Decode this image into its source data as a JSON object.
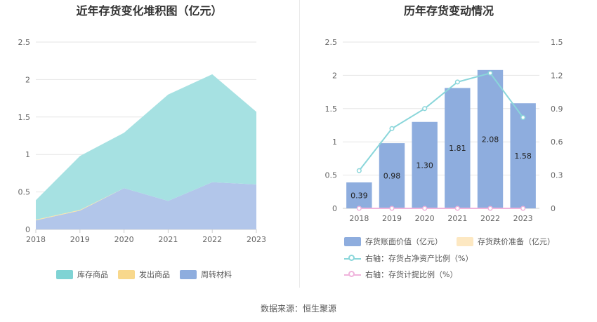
{
  "left": {
    "title": "近年存货变化堆积图（亿元）",
    "colors": {
      "库存商品": "#a6e1e2",
      "发出商品": "#fbe3a4",
      "周转材料": "#b2c6ea"
    },
    "legend_colors": [
      "#7fd3d4",
      "#f8d88c",
      "#8eadde"
    ],
    "chart_data": {
      "type": "area",
      "stacked": true,
      "x": [
        "2018",
        "2019",
        "2020",
        "2021",
        "2022",
        "2023"
      ],
      "series": [
        {
          "name": "库存商品",
          "values": [
            0.26,
            0.72,
            0.74,
            1.42,
            1.44,
            0.97
          ]
        },
        {
          "name": "发出商品",
          "values": [
            0.01,
            0.01,
            0.0,
            0.0,
            0.0,
            0.0
          ]
        },
        {
          "name": "周转材料",
          "values": [
            0.12,
            0.25,
            0.55,
            0.38,
            0.63,
            0.6
          ]
        }
      ],
      "stack_order": [
        "周转材料",
        "发出商品",
        "库存商品"
      ],
      "yticks": [
        "0",
        "0.5",
        "1",
        "1.5",
        "2",
        "2.5"
      ],
      "ylim": [
        0,
        2.5
      ],
      "grid": true,
      "legend_position": "bottom"
    }
  },
  "right": {
    "title": "历年存货变动情况",
    "bar_color": "#8eadde",
    "reserve_color": "#fde8c2",
    "ratio_color": "#8ad6da",
    "provision_color": "#f0b4dc",
    "chart_data": {
      "type": "bar",
      "x": [
        "2018",
        "2019",
        "2020",
        "2021",
        "2022",
        "2023"
      ],
      "series": [
        {
          "name": "存货账面价值（亿元）",
          "type": "bar",
          "axis": "left",
          "values": [
            0.39,
            0.98,
            1.3,
            1.81,
            2.08,
            1.58
          ],
          "labels": [
            "0.39",
            "0.98",
            "1.30",
            "1.81",
            "2.08",
            "1.58"
          ]
        },
        {
          "name": "存货跌价准备（亿元）",
          "type": "bar",
          "axis": "left",
          "values": [
            0,
            0,
            0,
            0,
            0,
            0
          ]
        },
        {
          "name": "右轴：存货占净资产比例（%）",
          "type": "line",
          "axis": "right",
          "values": [
            0.34,
            0.72,
            0.9,
            1.14,
            1.22,
            0.82
          ]
        },
        {
          "name": "右轴：存货计提比例（%）",
          "type": "line",
          "axis": "right",
          "values": [
            0,
            0,
            0,
            0,
            0,
            0
          ]
        }
      ],
      "yticks_left": [
        "0",
        "0.5",
        "1",
        "1.5",
        "2",
        "2.5"
      ],
      "yticks_right": [
        "0",
        "0.3",
        "0.6",
        "0.9",
        "1.2",
        "1.5"
      ],
      "ylim_left": [
        0,
        2.5
      ],
      "ylim_right": [
        0,
        1.5
      ],
      "grid": true,
      "legend_position": "bottom"
    }
  },
  "source": "数据来源：恒生聚源"
}
